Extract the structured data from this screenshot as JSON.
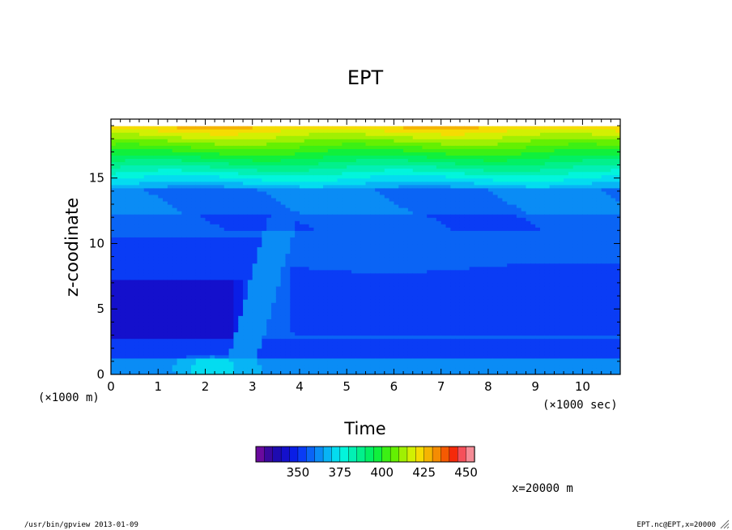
{
  "chart_data": {
    "type": "heatmap",
    "title": "EPT",
    "xlabel": "Time",
    "ylabel": "z-coodinate",
    "x_unit": "(×1000 sec)",
    "y_unit": "(×1000 m)",
    "xlim": [
      0,
      10.8
    ],
    "ylim": [
      0,
      19.5
    ],
    "x_ticks": [
      0,
      1,
      2,
      3,
      4,
      5,
      6,
      7,
      8,
      9,
      10
    ],
    "y_ticks": [
      0,
      5,
      10,
      15
    ],
    "grid": false,
    "legend": "bottom-center colorbar",
    "colorbar": {
      "min": 325,
      "max": 450,
      "step": 5,
      "tick_labels": [
        "350",
        "375",
        "400",
        "425",
        "450"
      ],
      "tick_values": [
        350,
        375,
        400,
        425,
        450
      ],
      "colors": [
        "#6a0a9e",
        "#3a089e",
        "#1e0bb0",
        "#1410cc",
        "#0a1ee6",
        "#0a3cf5",
        "#0a64f5",
        "#0a8cf5",
        "#08b4f5",
        "#04dcf0",
        "#02f5dc",
        "#02f0b4",
        "#02f08c",
        "#02f064",
        "#10f03c",
        "#3cf014",
        "#64f002",
        "#a0f002",
        "#d2f002",
        "#f5dc02",
        "#f5b402",
        "#f58c02",
        "#f55a02",
        "#f52a0a",
        "#f5505a",
        "#f58c96"
      ]
    },
    "annotation": "x=20000 m"
  },
  "footer": {
    "left": "/usr/bin/gpview  2013-01-09",
    "right": "EPT.nc@EPT,x=20000"
  }
}
